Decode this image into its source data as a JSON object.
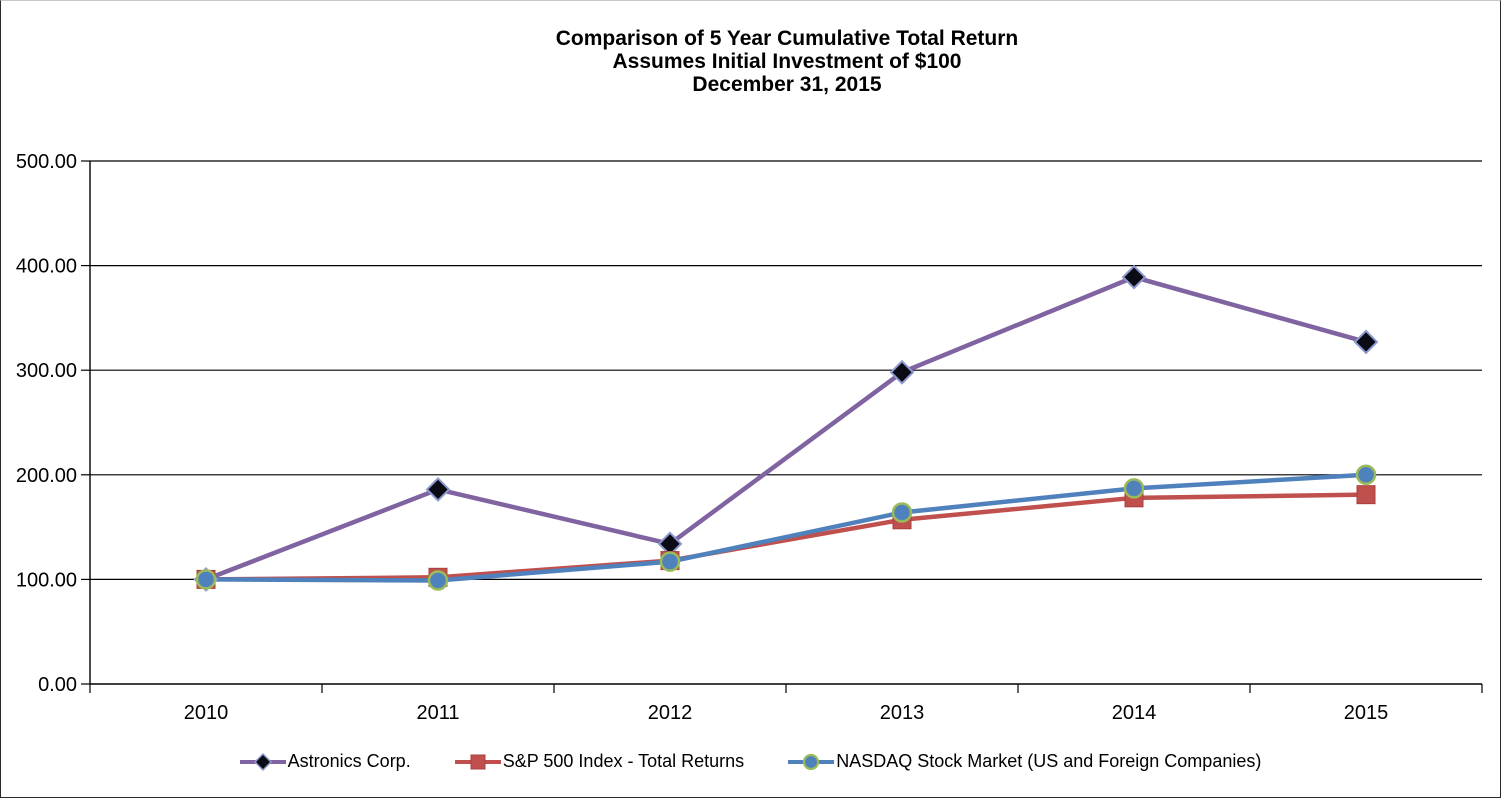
{
  "title": {
    "line1": "Comparison of 5 Year Cumulative Total Return",
    "line2": "Assumes Initial Investment of $100",
    "line3": "December 31, 2015"
  },
  "chart_data": {
    "type": "line",
    "title": "Comparison of 5 Year Cumulative Total Return Assumes Initial Investment of $100 December 31, 2015",
    "xlabel": "",
    "ylabel": "",
    "categories": [
      "2010",
      "2011",
      "2012",
      "2013",
      "2014",
      "2015"
    ],
    "series": [
      {
        "name": "Astronics Corp.",
        "values": [
          100,
          186,
          134,
          298,
          389,
          327
        ],
        "line_color": "#8064A2",
        "marker": "diamond",
        "marker_fill": "#0b0b15",
        "marker_edge": "#8d99cf"
      },
      {
        "name": "S&P 500 Index - Total Returns",
        "values": [
          100,
          102,
          118,
          157,
          178,
          181
        ],
        "line_color": "#C0504D",
        "marker": "square",
        "marker_fill": "#C0504D",
        "marker_edge": "#A83F3C"
      },
      {
        "name": "NASDAQ Stock Market (US and Foreign Companies)",
        "values": [
          100,
          99,
          117,
          164,
          187,
          200
        ],
        "line_color": "#4F81BD",
        "marker": "circle",
        "marker_fill": "#4F81BD",
        "marker_edge": "#9BBB59"
      }
    ],
    "ylim": [
      0,
      500
    ],
    "ytick_step": 100,
    "ytick_labels": [
      "0.00",
      "100.00",
      "200.00",
      "300.00",
      "400.00",
      "500.00"
    ],
    "grid": true,
    "gridline_color": "#000000",
    "axis_color": "#000000",
    "legend_position": "bottom"
  }
}
